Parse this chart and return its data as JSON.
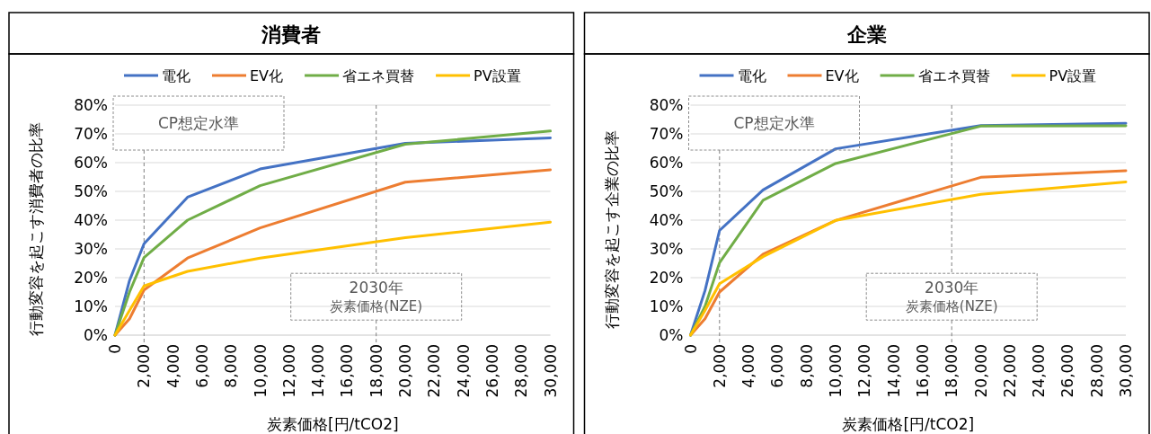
{
  "chart_data": [
    {
      "type": "line",
      "title": "消費者",
      "xlabel": "炭素価格[円/tCO2]",
      "ylabel": "行動変容を起こす消費者の比率",
      "x": [
        0,
        1000,
        2000,
        5000,
        10000,
        20000,
        30000
      ],
      "series": [
        {
          "name": "電化",
          "color": "#4472c4",
          "values": [
            0,
            19,
            31.8,
            48,
            57.8,
            66.7,
            68.6
          ]
        },
        {
          "name": "EV化",
          "color": "#ed7d31",
          "values": [
            0,
            5.7,
            15.7,
            26.8,
            37.3,
            53.2,
            57.5
          ]
        },
        {
          "name": "省エネ買替",
          "color": "#70ad47",
          "values": [
            0,
            15,
            27,
            40,
            52,
            66.4,
            71
          ]
        },
        {
          "name": "PV設置",
          "color": "#ffc000",
          "values": [
            0,
            8.6,
            17.1,
            22.2,
            26.8,
            33.9,
            39.3
          ]
        }
      ],
      "xlim": [
        0,
        30000
      ],
      "xticks": [
        0,
        {
          "value": 2000,
          "label": "2,000"
        },
        {
          "value": 4000,
          "label": "4,000"
        },
        {
          "value": 6000,
          "label": "6,000"
        },
        {
          "value": 8000,
          "label": "8,000"
        },
        {
          "value": 10000,
          "label": "10,000"
        },
        {
          "value": 12000,
          "label": "12,000"
        },
        {
          "value": 14000,
          "label": "14,000"
        },
        {
          "value": 16000,
          "label": "16,000"
        },
        {
          "value": 18000,
          "label": "18,000"
        },
        {
          "value": 20000,
          "label": "20,000"
        },
        {
          "value": 22000,
          "label": "22,000"
        },
        {
          "value": 24000,
          "label": "24,000"
        },
        {
          "value": 26000,
          "label": "26,000"
        },
        {
          "value": 28000,
          "label": "28,000"
        },
        {
          "value": 30000,
          "label": "30,000"
        }
      ],
      "ylim": [
        0,
        80
      ],
      "yticks": [
        {
          "value": 0,
          "label": "0%"
        },
        {
          "value": 10,
          "label": "10%"
        },
        {
          "value": 20,
          "label": "20%"
        },
        {
          "value": 30,
          "label": "30%"
        },
        {
          "value": 40,
          "label": "40%"
        },
        {
          "value": 50,
          "label": "50%"
        },
        {
          "value": 60,
          "label": "60%"
        },
        {
          "value": 70,
          "label": "70%"
        },
        {
          "value": 80,
          "label": "80%"
        }
      ],
      "ref_lines": [
        {
          "axis": "x",
          "value": 2000,
          "label": "CP想定水準",
          "color": "#7f7f7f",
          "line_style": "dashed"
        },
        {
          "axis": "x",
          "value": 18000,
          "label": "2030年",
          "color": "#7f7f7f",
          "line_style": "dashed"
        }
      ],
      "annotations": [
        "炭素価格(NZE)"
      ],
      "grid": "y",
      "legend": "top",
      "line_style": "solid"
    },
    {
      "type": "line",
      "title": "企業",
      "xlabel": "炭素価格[円/tCO2]",
      "ylabel": "行動変容を起こす企業の比率",
      "x": [
        0,
        1000,
        2000,
        5000,
        10000,
        20000,
        30000
      ],
      "series": [
        {
          "name": "電化",
          "color": "#4472c4",
          "values": [
            0,
            15.5,
            36.4,
            50.5,
            64.8,
            72.9,
            73.7
          ]
        },
        {
          "name": "EV化",
          "color": "#ed7d31",
          "values": [
            0,
            5.7,
            15,
            28.2,
            39.9,
            54.9,
            57.2
          ]
        },
        {
          "name": "省エネ買替",
          "color": "#70ad47",
          "values": [
            0,
            10,
            25.2,
            46.9,
            59.7,
            72.7,
            72.8
          ]
        },
        {
          "name": "PV設置",
          "color": "#ffc000",
          "values": [
            0,
            8.6,
            17.9,
            27.3,
            39.9,
            49,
            53.3
          ]
        }
      ],
      "xlim": [
        0,
        30000
      ],
      "xticks": [
        0,
        {
          "value": 2000,
          "label": "2,000"
        },
        {
          "value": 4000,
          "label": "4,000"
        },
        {
          "value": 6000,
          "label": "6,000"
        },
        {
          "value": 8000,
          "label": "8,000"
        },
        {
          "value": 10000,
          "label": "10,000"
        },
        {
          "value": 12000,
          "label": "12,000"
        },
        {
          "value": 14000,
          "label": "14,000"
        },
        {
          "value": 16000,
          "label": "16,000"
        },
        {
          "value": 18000,
          "label": "18,000"
        },
        {
          "value": 20000,
          "label": "20,000"
        },
        {
          "value": 22000,
          "label": "22,000"
        },
        {
          "value": 24000,
          "label": "24,000"
        },
        {
          "value": 26000,
          "label": "26,000"
        },
        {
          "value": 28000,
          "label": "28,000"
        },
        {
          "value": 30000,
          "label": "30,000"
        }
      ],
      "ylim": [
        0,
        80
      ],
      "yticks": [
        {
          "value": 0,
          "label": "0%"
        },
        {
          "value": 10,
          "label": "10%"
        },
        {
          "value": 20,
          "label": "20%"
        },
        {
          "value": 30,
          "label": "30%"
        },
        {
          "value": 40,
          "label": "40%"
        },
        {
          "value": 50,
          "label": "50%"
        },
        {
          "value": 60,
          "label": "60%"
        },
        {
          "value": 70,
          "label": "70%"
        },
        {
          "value": 80,
          "label": "80%"
        }
      ],
      "ref_lines": [
        {
          "axis": "x",
          "value": 2000,
          "label": "CP想定水準",
          "color": "#7f7f7f",
          "line_style": "dashed"
        },
        {
          "axis": "x",
          "value": 18000,
          "label": "2030年",
          "color": "#7f7f7f",
          "line_style": "dashed"
        }
      ],
      "annotations": [
        "炭素価格(NZE)"
      ],
      "grid": "y",
      "legend": "top",
      "line_style": "solid"
    }
  ]
}
